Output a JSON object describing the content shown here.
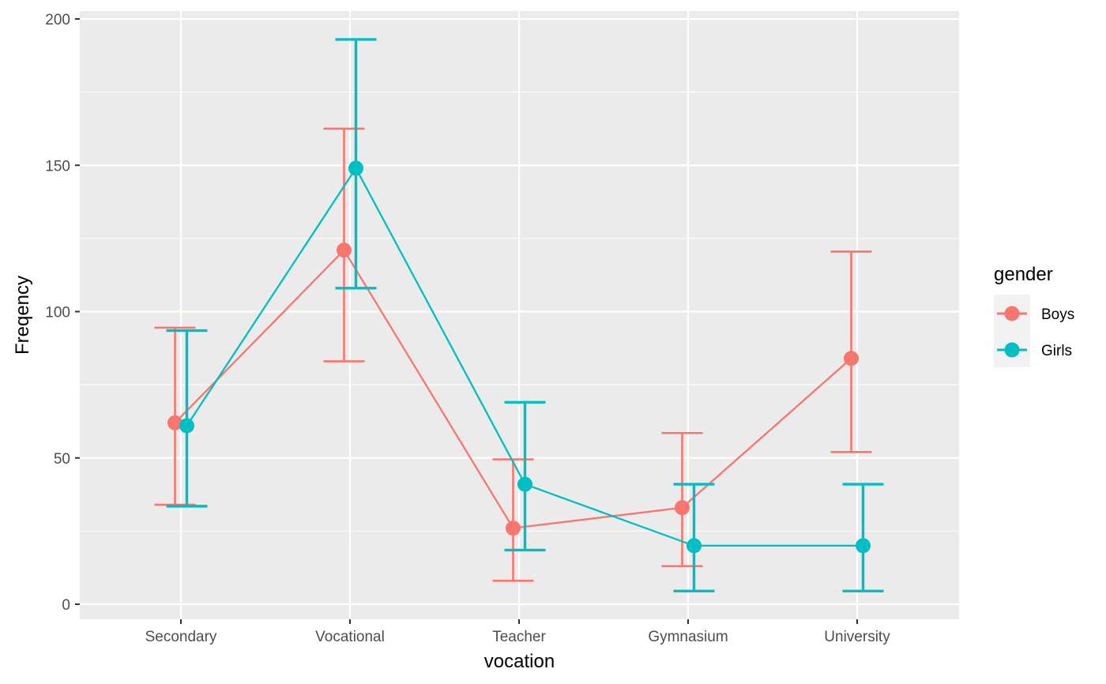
{
  "chart_data": {
    "type": "line",
    "title": "",
    "xlabel": "vocation",
    "ylabel": "Freqency",
    "categories": [
      "Secondary",
      "Vocational",
      "Teacher",
      "Gymnasium",
      "University"
    ],
    "ylim": [
      -4,
      200
    ],
    "yticks": [
      0,
      50,
      100,
      150,
      200
    ],
    "grid": true,
    "legend": {
      "title": "gender",
      "position": "right"
    },
    "series": [
      {
        "name": "Boys",
        "color": "#F8766D",
        "values": [
          62,
          121,
          26,
          33,
          84
        ],
        "lower": [
          34,
          83,
          8,
          13,
          52
        ],
        "upper": [
          94.5,
          162.5,
          49.5,
          58.5,
          120.5
        ]
      },
      {
        "name": "Girls",
        "color": "#00BFC4",
        "values": [
          61,
          149,
          41,
          20,
          20
        ],
        "lower": [
          33.5,
          108,
          18.5,
          4.5,
          4.5
        ],
        "upper": [
          93.5,
          193,
          69,
          41,
          41
        ]
      }
    ]
  }
}
